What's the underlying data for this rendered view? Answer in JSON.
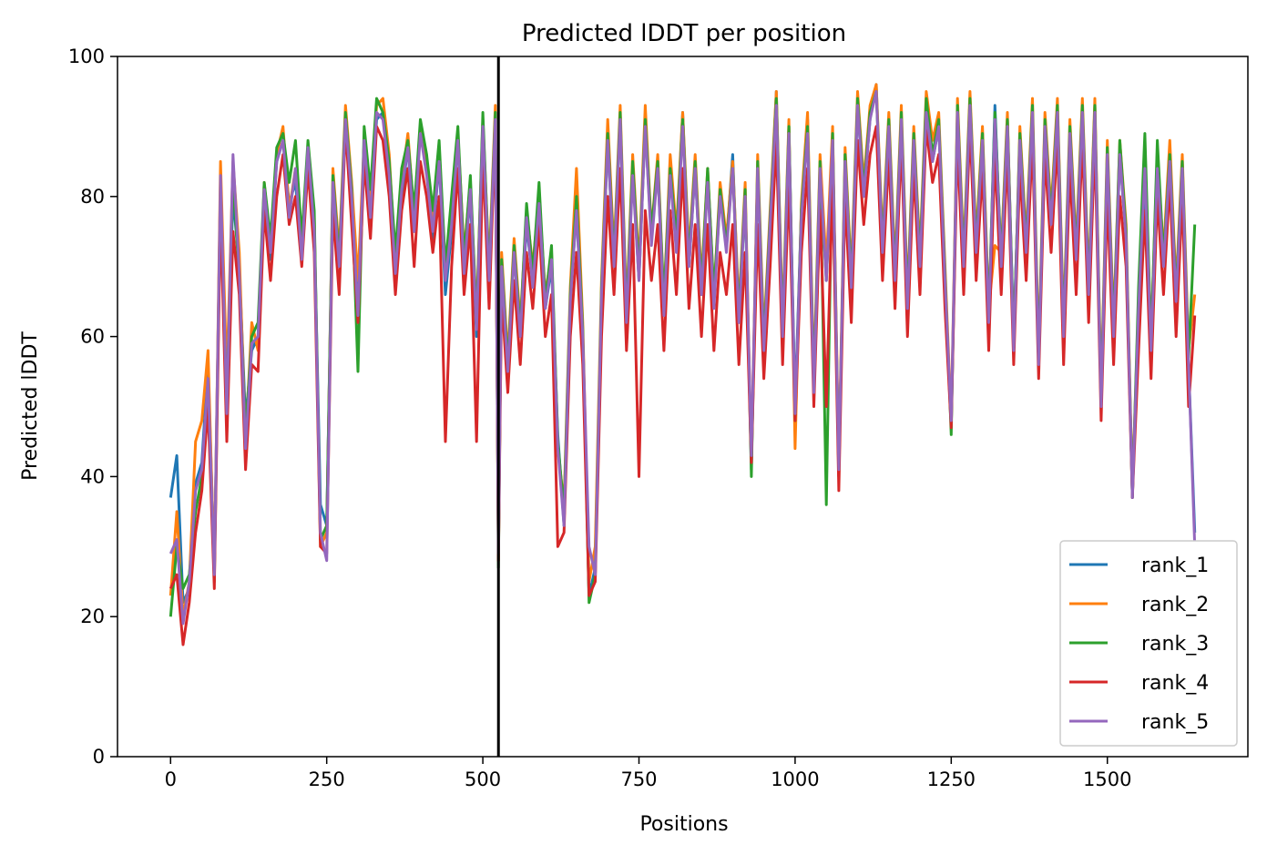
{
  "chart_data": {
    "type": "line",
    "title": "Predicted lDDT per position",
    "xlabel": "Positions",
    "ylabel": "Predicted lDDT",
    "xlim": [
      -85,
      1725
    ],
    "ylim": [
      0,
      100
    ],
    "xticks": [
      0,
      250,
      500,
      750,
      1000,
      1250,
      1500
    ],
    "yticks": [
      0,
      20,
      40,
      60,
      80,
      100
    ],
    "xtick_labels": [
      "0",
      "250",
      "500",
      "750",
      "1000",
      "1250",
      "1500"
    ],
    "ytick_labels": [
      "0",
      "20",
      "40",
      "60",
      "80",
      "100"
    ],
    "vline_x": 525,
    "vline_color": "#000000",
    "legend_position": "lower right",
    "grid": false,
    "x": [
      0,
      10,
      20,
      30,
      40,
      50,
      60,
      70,
      80,
      90,
      100,
      110,
      120,
      130,
      140,
      150,
      160,
      170,
      180,
      190,
      200,
      210,
      220,
      230,
      240,
      250,
      260,
      270,
      280,
      290,
      300,
      310,
      320,
      330,
      340,
      350,
      360,
      370,
      380,
      390,
      400,
      410,
      420,
      430,
      440,
      450,
      460,
      470,
      480,
      490,
      500,
      510,
      520,
      525,
      530,
      540,
      550,
      560,
      570,
      580,
      590,
      600,
      610,
      620,
      630,
      640,
      650,
      660,
      670,
      680,
      690,
      700,
      710,
      720,
      730,
      740,
      750,
      760,
      770,
      780,
      790,
      800,
      810,
      820,
      830,
      840,
      850,
      860,
      870,
      880,
      890,
      900,
      910,
      920,
      930,
      940,
      950,
      960,
      970,
      980,
      990,
      1000,
      1010,
      1020,
      1030,
      1040,
      1050,
      1060,
      1070,
      1080,
      1090,
      1100,
      1110,
      1120,
      1130,
      1140,
      1150,
      1160,
      1170,
      1180,
      1190,
      1200,
      1210,
      1220,
      1230,
      1240,
      1250,
      1260,
      1270,
      1280,
      1290,
      1300,
      1310,
      1320,
      1330,
      1340,
      1350,
      1360,
      1370,
      1380,
      1390,
      1400,
      1410,
      1420,
      1430,
      1440,
      1450,
      1460,
      1470,
      1480,
      1490,
      1500,
      1510,
      1520,
      1530,
      1540,
      1550,
      1560,
      1570,
      1580,
      1590,
      1600,
      1610,
      1620,
      1630,
      1640
    ],
    "series": [
      {
        "name": "rank_1",
        "color": "#1f77b4",
        "values": [
          37,
          43,
          22,
          24,
          39,
          42,
          56,
          27,
          82,
          52,
          80,
          70,
          48,
          58,
          60,
          80,
          71,
          85,
          88,
          79,
          82,
          72,
          87,
          76,
          36,
          33,
          82,
          70,
          92,
          80,
          65,
          87,
          78,
          91,
          92,
          84,
          68,
          80,
          87,
          75,
          90,
          84,
          74,
          85,
          66,
          75,
          88,
          70,
          80,
          60,
          90,
          68,
          92,
          30,
          70,
          55,
          72,
          60,
          76,
          68,
          81,
          64,
          70,
          46,
          33,
          65,
          78,
          60,
          23,
          27,
          66,
          88,
          70,
          91,
          62,
          84,
          68,
          90,
          74,
          84,
          64,
          85,
          73,
          92,
          70,
          84,
          66,
          83,
          65,
          80,
          73,
          86,
          62,
          80,
          41,
          84,
          58,
          76,
          95,
          60,
          90,
          50,
          78,
          91,
          52,
          84,
          68,
          88,
          40,
          85,
          67,
          93,
          80,
          91,
          96,
          72,
          90,
          68,
          91,
          64,
          88,
          70,
          93,
          85,
          90,
          68,
          47,
          91,
          70,
          94,
          72,
          89,
          62,
          93,
          70,
          91,
          60,
          88,
          72,
          92,
          56,
          90,
          76,
          92,
          60,
          89,
          71,
          91,
          66,
          93,
          50,
          86,
          60,
          86,
          74,
          37,
          63,
          83,
          58,
          84,
          70,
          86,
          65,
          84,
          56,
          32
        ]
      },
      {
        "name": "rank_2",
        "color": "#ff7f0e",
        "values": [
          23,
          35,
          20,
          25,
          45,
          48,
          58,
          26,
          85,
          54,
          85,
          72,
          45,
          62,
          58,
          82,
          72,
          86,
          90,
          78,
          84,
          73,
          86,
          77,
          30,
          32,
          84,
          72,
          93,
          82,
          68,
          88,
          79,
          93,
          94,
          86,
          70,
          82,
          89,
          77,
          90,
          85,
          76,
          86,
          70,
          78,
          89,
          72,
          82,
          63,
          91,
          70,
          93,
          28,
          72,
          57,
          74,
          62,
          78,
          70,
          80,
          66,
          72,
          44,
          36,
          67,
          84,
          62,
          25,
          30,
          68,
          91,
          72,
          93,
          64,
          86,
          70,
          93,
          75,
          86,
          65,
          86,
          75,
          92,
          72,
          86,
          68,
          84,
          66,
          82,
          74,
          85,
          64,
          82,
          42,
          86,
          60,
          78,
          95,
          62,
          91,
          44,
          79,
          92,
          54,
          86,
          70,
          90,
          42,
          87,
          69,
          95,
          82,
          93,
          96,
          74,
          92,
          70,
          93,
          66,
          90,
          72,
          95,
          88,
          92,
          70,
          48,
          94,
          72,
          95,
          74,
          90,
          64,
          73,
          72,
          92,
          58,
          90,
          74,
          94,
          58,
          92,
          78,
          94,
          62,
          91,
          73,
          94,
          68,
          94,
          52,
          88,
          62,
          88,
          76,
          38,
          65,
          85,
          60,
          86,
          72,
          88,
          67,
          86,
          58,
          66
        ]
      },
      {
        "name": "rank_3",
        "color": "#2ca02c",
        "values": [
          20,
          30,
          24,
          26,
          35,
          40,
          52,
          25,
          80,
          50,
          83,
          68,
          46,
          60,
          62,
          82,
          74,
          87,
          89,
          82,
          88,
          74,
          88,
          78,
          31,
          33,
          83,
          71,
          92,
          81,
          55,
          90,
          81,
          94,
          92,
          85,
          72,
          84,
          88,
          78,
          91,
          86,
          78,
          88,
          70,
          80,
          90,
          71,
          83,
          62,
          92,
          69,
          92,
          27,
          71,
          56,
          73,
          61,
          79,
          69,
          82,
          65,
          73,
          45,
          35,
          66,
          80,
          61,
          22,
          26,
          67,
          89,
          71,
          92,
          63,
          85,
          69,
          91,
          75,
          85,
          65,
          84,
          74,
          91,
          71,
          85,
          67,
          84,
          66,
          81,
          73,
          84,
          63,
          81,
          40,
          85,
          59,
          77,
          94,
          61,
          90,
          48,
          78,
          90,
          53,
          85,
          36,
          89,
          40,
          86,
          68,
          94,
          81,
          92,
          95,
          73,
          91,
          69,
          92,
          65,
          89,
          71,
          94,
          86,
          91,
          69,
          46,
          93,
          71,
          94,
          73,
          89,
          63,
          92,
          71,
          91,
          59,
          89,
          73,
          93,
          57,
          91,
          77,
          93,
          61,
          90,
          72,
          93,
          67,
          93,
          51,
          87,
          61,
          88,
          75,
          37,
          67,
          89,
          59,
          88,
          71,
          86,
          66,
          85,
          57,
          76
        ]
      },
      {
        "name": "rank_4",
        "color": "#d62728",
        "values": [
          24,
          26,
          16,
          22,
          32,
          38,
          50,
          24,
          78,
          45,
          75,
          66,
          41,
          56,
          55,
          78,
          68,
          80,
          86,
          76,
          80,
          70,
          84,
          72,
          30,
          29,
          78,
          66,
          90,
          76,
          62,
          85,
          74,
          90,
          88,
          80,
          66,
          78,
          84,
          70,
          85,
          80,
          72,
          80,
          45,
          70,
          84,
          66,
          76,
          45,
          86,
          64,
          90,
          28,
          66,
          52,
          68,
          56,
          72,
          64,
          76,
          60,
          66,
          30,
          32,
          60,
          72,
          56,
          23,
          25,
          60,
          80,
          66,
          84,
          58,
          76,
          40,
          78,
          68,
          76,
          58,
          78,
          66,
          84,
          64,
          76,
          60,
          76,
          58,
          72,
          66,
          76,
          56,
          72,
          42,
          76,
          54,
          70,
          88,
          56,
          82,
          48,
          72,
          84,
          50,
          78,
          50,
          82,
          38,
          80,
          62,
          88,
          76,
          86,
          90,
          68,
          86,
          64,
          88,
          60,
          84,
          66,
          90,
          82,
          86,
          64,
          47,
          88,
          66,
          90,
          68,
          84,
          58,
          86,
          66,
          86,
          56,
          84,
          68,
          88,
          54,
          86,
          72,
          88,
          56,
          84,
          66,
          88,
          62,
          88,
          48,
          80,
          56,
          80,
          70,
          37,
          58,
          78,
          54,
          80,
          66,
          82,
          60,
          80,
          50,
          63
        ]
      },
      {
        "name": "rank_5",
        "color": "#9467bd",
        "values": [
          29,
          31,
          19,
          25,
          38,
          41,
          54,
          26,
          83,
          49,
          86,
          69,
          44,
          59,
          60,
          81,
          72,
          85,
          88,
          77,
          84,
          71,
          87,
          75,
          32,
          28,
          82,
          70,
          91,
          80,
          63,
          88,
          77,
          92,
          91,
          83,
          69,
          81,
          87,
          75,
          89,
          83,
          75,
          85,
          68,
          76,
          88,
          69,
          81,
          61,
          90,
          68,
          91,
          29,
          70,
          55,
          72,
          60,
          77,
          67,
          79,
          64,
          71,
          44,
          33,
          65,
          78,
          60,
          30,
          26,
          66,
          88,
          70,
          91,
          62,
          83,
          68,
          90,
          73,
          84,
          63,
          83,
          72,
          90,
          70,
          84,
          66,
          82,
          64,
          80,
          72,
          84,
          62,
          80,
          43,
          84,
          58,
          76,
          93,
          60,
          89,
          49,
          77,
          89,
          52,
          84,
          68,
          88,
          41,
          85,
          67,
          93,
          80,
          91,
          95,
          72,
          90,
          68,
          91,
          64,
          88,
          70,
          92,
          85,
          90,
          68,
          48,
          92,
          70,
          93,
          72,
          88,
          62,
          91,
          70,
          90,
          58,
          88,
          72,
          92,
          56,
          90,
          76,
          92,
          60,
          89,
          71,
          92,
          66,
          92,
          50,
          86,
          60,
          86,
          74,
          37,
          64,
          84,
          58,
          84,
          70,
          85,
          65,
          84,
          56,
          30
        ]
      }
    ]
  }
}
